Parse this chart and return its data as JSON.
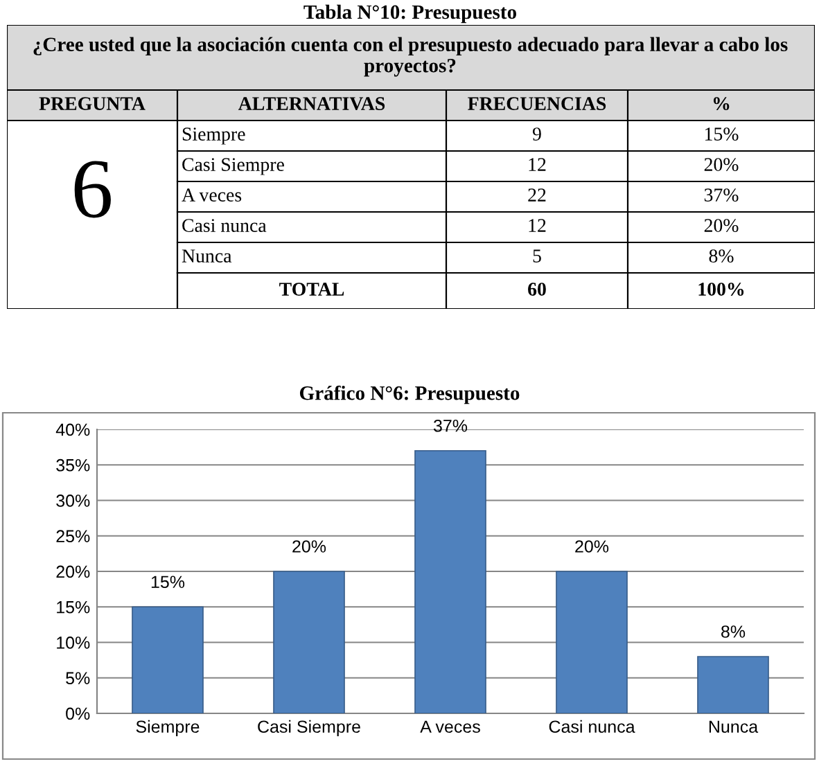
{
  "chart_data": [
    {
      "type": "other",
      "title": "Tabla N°10: Presupuesto",
      "subtitle": "¿Cree usted que la asociación cuenta con el presupuesto adecuado para llevar a cabo los proyectos?",
      "categories": [
        "Siempre",
        "Casi Siempre",
        "A veces",
        "Casi nunca",
        "Nunca"
      ],
      "annotations": [
        "PREGUNTA",
        "ALTERNATIVAS",
        "FRECUENCIAS",
        "%",
        "9",
        "15%",
        "12",
        "20%",
        "22",
        "37%",
        "12",
        "20%",
        "5",
        "8%",
        "6",
        "TOTAL",
        "60",
        "100%"
      ]
    },
    {
      "type": "bar",
      "title": "Gráfico N°6: Presupuesto",
      "categories": [
        "Siempre",
        "Casi Siempre",
        "A veces",
        "Casi nunca",
        "Nunca"
      ],
      "values": [
        15,
        20,
        37,
        20,
        8
      ],
      "color": "#4f81bd",
      "value_labels": [
        "15%",
        "20%",
        "37%",
        "20%",
        "8%"
      ],
      "ylim": [
        0,
        40
      ],
      "yticks": [
        {
          "value": 0,
          "label": "0%"
        },
        {
          "value": 5,
          "label": "5%"
        },
        {
          "value": 10,
          "label": "10%"
        },
        {
          "value": 15,
          "label": "15%"
        },
        {
          "value": 20,
          "label": "20%"
        },
        {
          "value": 25,
          "label": "25%"
        },
        {
          "value": 30,
          "label": "30%"
        },
        {
          "value": 35,
          "label": "35%"
        },
        {
          "value": 40,
          "label": "40%"
        }
      ],
      "grid": "y"
    }
  ]
}
